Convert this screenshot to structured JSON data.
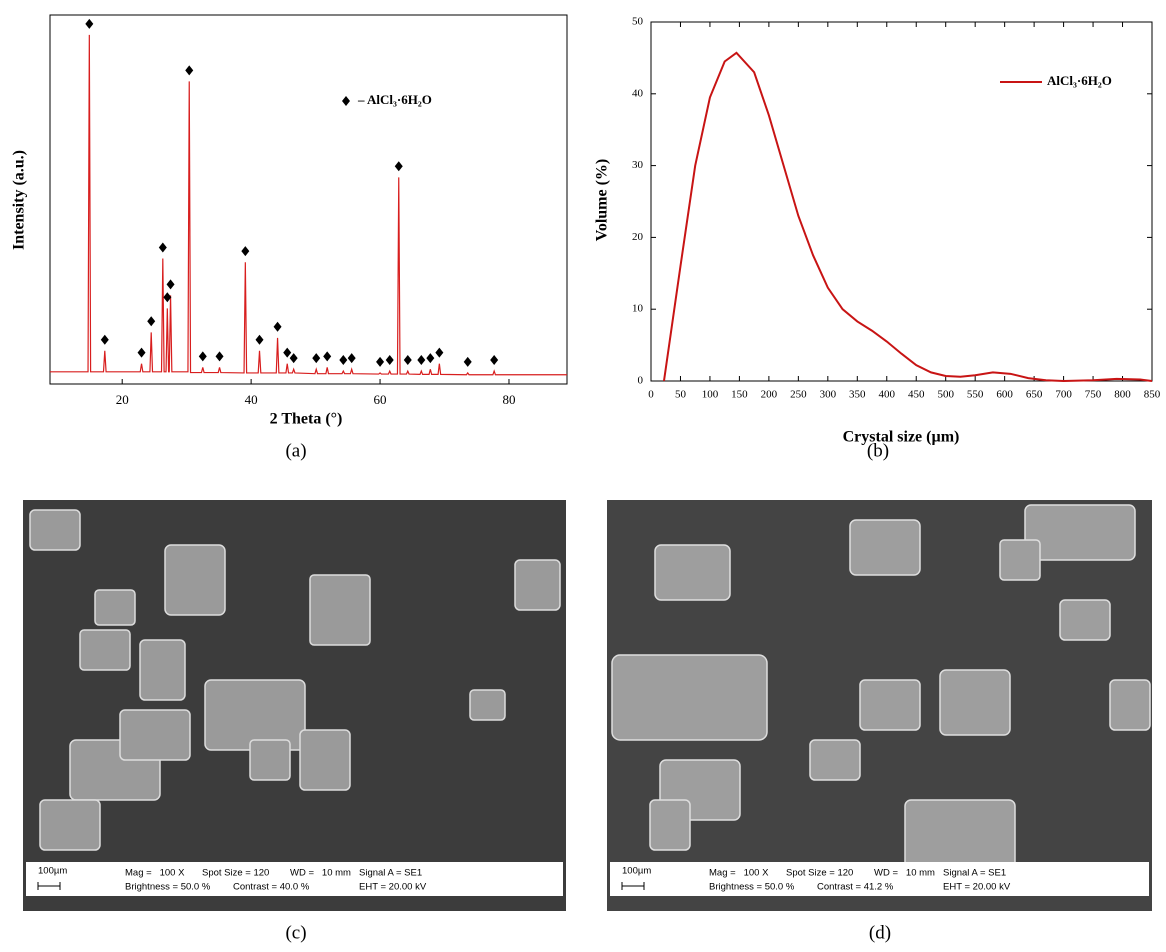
{
  "chart_data": [
    {
      "type": "line",
      "panel_label": "(a)",
      "xlabel": "2 Theta (°)",
      "ylabel": "Intensity (a.u.)",
      "xlim": [
        8.8,
        89
      ],
      "ylim": [
        0,
        100
      ],
      "xticks": [
        20,
        40,
        60,
        80
      ],
      "series": [
        {
          "color": "#d81e1e",
          "x": [
            8.8,
            14.7,
            14.9,
            15.1,
            17.1,
            17.3,
            17.5,
            22.8,
            23,
            23.2,
            24.3,
            24.5,
            24.7,
            26.1,
            26.3,
            26.5,
            26.8,
            27,
            27.2,
            27.3,
            27.5,
            27.7,
            30.2,
            30.4,
            30.6,
            32.3,
            32.5,
            32.7,
            34.9,
            35.1,
            35.3,
            38.9,
            39.1,
            39.3,
            41.1,
            41.3,
            41.5,
            43.9,
            44.1,
            44.3,
            45.4,
            45.6,
            45.8,
            46.4,
            46.6,
            46.8,
            49.9,
            50.1,
            50.3,
            51.6,
            51.8,
            52,
            54.1,
            54.3,
            54.5,
            55.4,
            55.6,
            55.8,
            59.8,
            60,
            60.2,
            61.3,
            61.5,
            61.7,
            62.7,
            62.9,
            63.1,
            64.1,
            64.3,
            64.5,
            66.2,
            66.4,
            66.6,
            67.6,
            67.8,
            68,
            69,
            69.2,
            69.4,
            73.4,
            73.6,
            73.8,
            77.5,
            77.7,
            77.9,
            89
          ],
          "values": [
            3.3,
            3.3,
            94.6,
            3.3,
            3.3,
            9,
            3.3,
            3.3,
            5.5,
            3.3,
            3.3,
            14,
            3.3,
            3.3,
            34,
            3.3,
            3.3,
            20.5,
            3.3,
            3.3,
            24,
            3.3,
            3.3,
            82,
            3.1,
            3.1,
            4.5,
            3.1,
            3.1,
            4.5,
            3.1,
            3,
            33,
            3,
            3,
            9,
            3,
            3,
            12.5,
            3,
            3,
            5.5,
            3,
            3,
            4,
            3,
            2.8,
            4,
            2.8,
            2.8,
            4.5,
            2.8,
            2.8,
            3.5,
            2.8,
            2.8,
            4,
            2.8,
            2.7,
            3,
            2.7,
            2.7,
            3.5,
            2.7,
            2.7,
            56,
            2.7,
            2.7,
            3.5,
            2.7,
            2.6,
            3.5,
            2.6,
            2.6,
            4,
            2.6,
            2.6,
            5.5,
            2.6,
            2.5,
            3,
            2.5,
            2.5,
            3.5,
            2.5,
            2.5
          ]
        }
      ],
      "markers": {
        "name": "– AlCl₃·6H₂O",
        "color": "#000000",
        "x": [
          14.9,
          17.3,
          23,
          24.5,
          26.3,
          27,
          27.5,
          30.4,
          32.5,
          35.1,
          39.1,
          41.3,
          44.1,
          45.6,
          46.6,
          50.1,
          51.8,
          54.3,
          55.6,
          60,
          61.5,
          62.9,
          64.3,
          66.4,
          67.8,
          69.2,
          73.6,
          77.7
        ],
        "values": [
          97.6,
          12,
          8.5,
          17,
          37,
          23.5,
          27,
          85,
          7.5,
          7.5,
          36,
          12,
          15.5,
          8.5,
          7,
          7,
          7.5,
          6.5,
          7,
          6,
          6.5,
          59,
          6.5,
          6.5,
          7,
          8.5,
          6,
          6.5
        ]
      }
    },
    {
      "type": "line",
      "panel_label": "(b)",
      "xlabel": "Crystal size (µm)",
      "ylabel": "Volume (%)",
      "xlim": [
        0,
        850
      ],
      "ylim": [
        0,
        50
      ],
      "xticks": [
        0,
        50,
        100,
        150,
        200,
        250,
        300,
        350,
        400,
        450,
        500,
        550,
        600,
        650,
        700,
        750,
        800,
        850
      ],
      "yticks": [
        0,
        10,
        20,
        30,
        40,
        50
      ],
      "legend": "upper right",
      "series": [
        {
          "name": "AlCl₃·6H₂O",
          "color": "#c81414",
          "x": [
            22,
            50,
            75,
            100,
            125,
            145,
            175,
            200,
            225,
            250,
            275,
            300,
            325,
            350,
            375,
            400,
            425,
            450,
            475,
            500,
            525,
            550,
            580,
            610,
            640,
            670,
            700,
            750,
            790,
            830,
            850
          ],
          "values": [
            0,
            16,
            30,
            39.5,
            44.5,
            45.7,
            43,
            37,
            30,
            23,
            17.5,
            13,
            10,
            8.3,
            7,
            5.5,
            3.8,
            2.2,
            1.2,
            0.7,
            0.6,
            0.8,
            1.2,
            1,
            0.4,
            0.1,
            0,
            0.1,
            0.3,
            0.2,
            0
          ]
        }
      ]
    }
  ],
  "images": [
    {
      "panel_label": "(c)",
      "scale_bar": "100µm",
      "info": [
        [
          "Mag =   100 X",
          "Spot Size = 120",
          "WD =   10 mm",
          "Signal A = SE1"
        ],
        [
          "Brightness = 50.0 %",
          "Contrast = 40.0 %",
          "EHT = 20.00 kV"
        ]
      ]
    },
    {
      "panel_label": "(d)",
      "scale_bar": "100µm",
      "info": [
        [
          "Mag =   100 X",
          "Spot Size = 120",
          "WD =   10 mm",
          "Signal A = SE1"
        ],
        [
          "Brightness = 50.0 %",
          "Contrast = 41.2 %",
          "EHT = 20.00 kV"
        ]
      ]
    }
  ]
}
